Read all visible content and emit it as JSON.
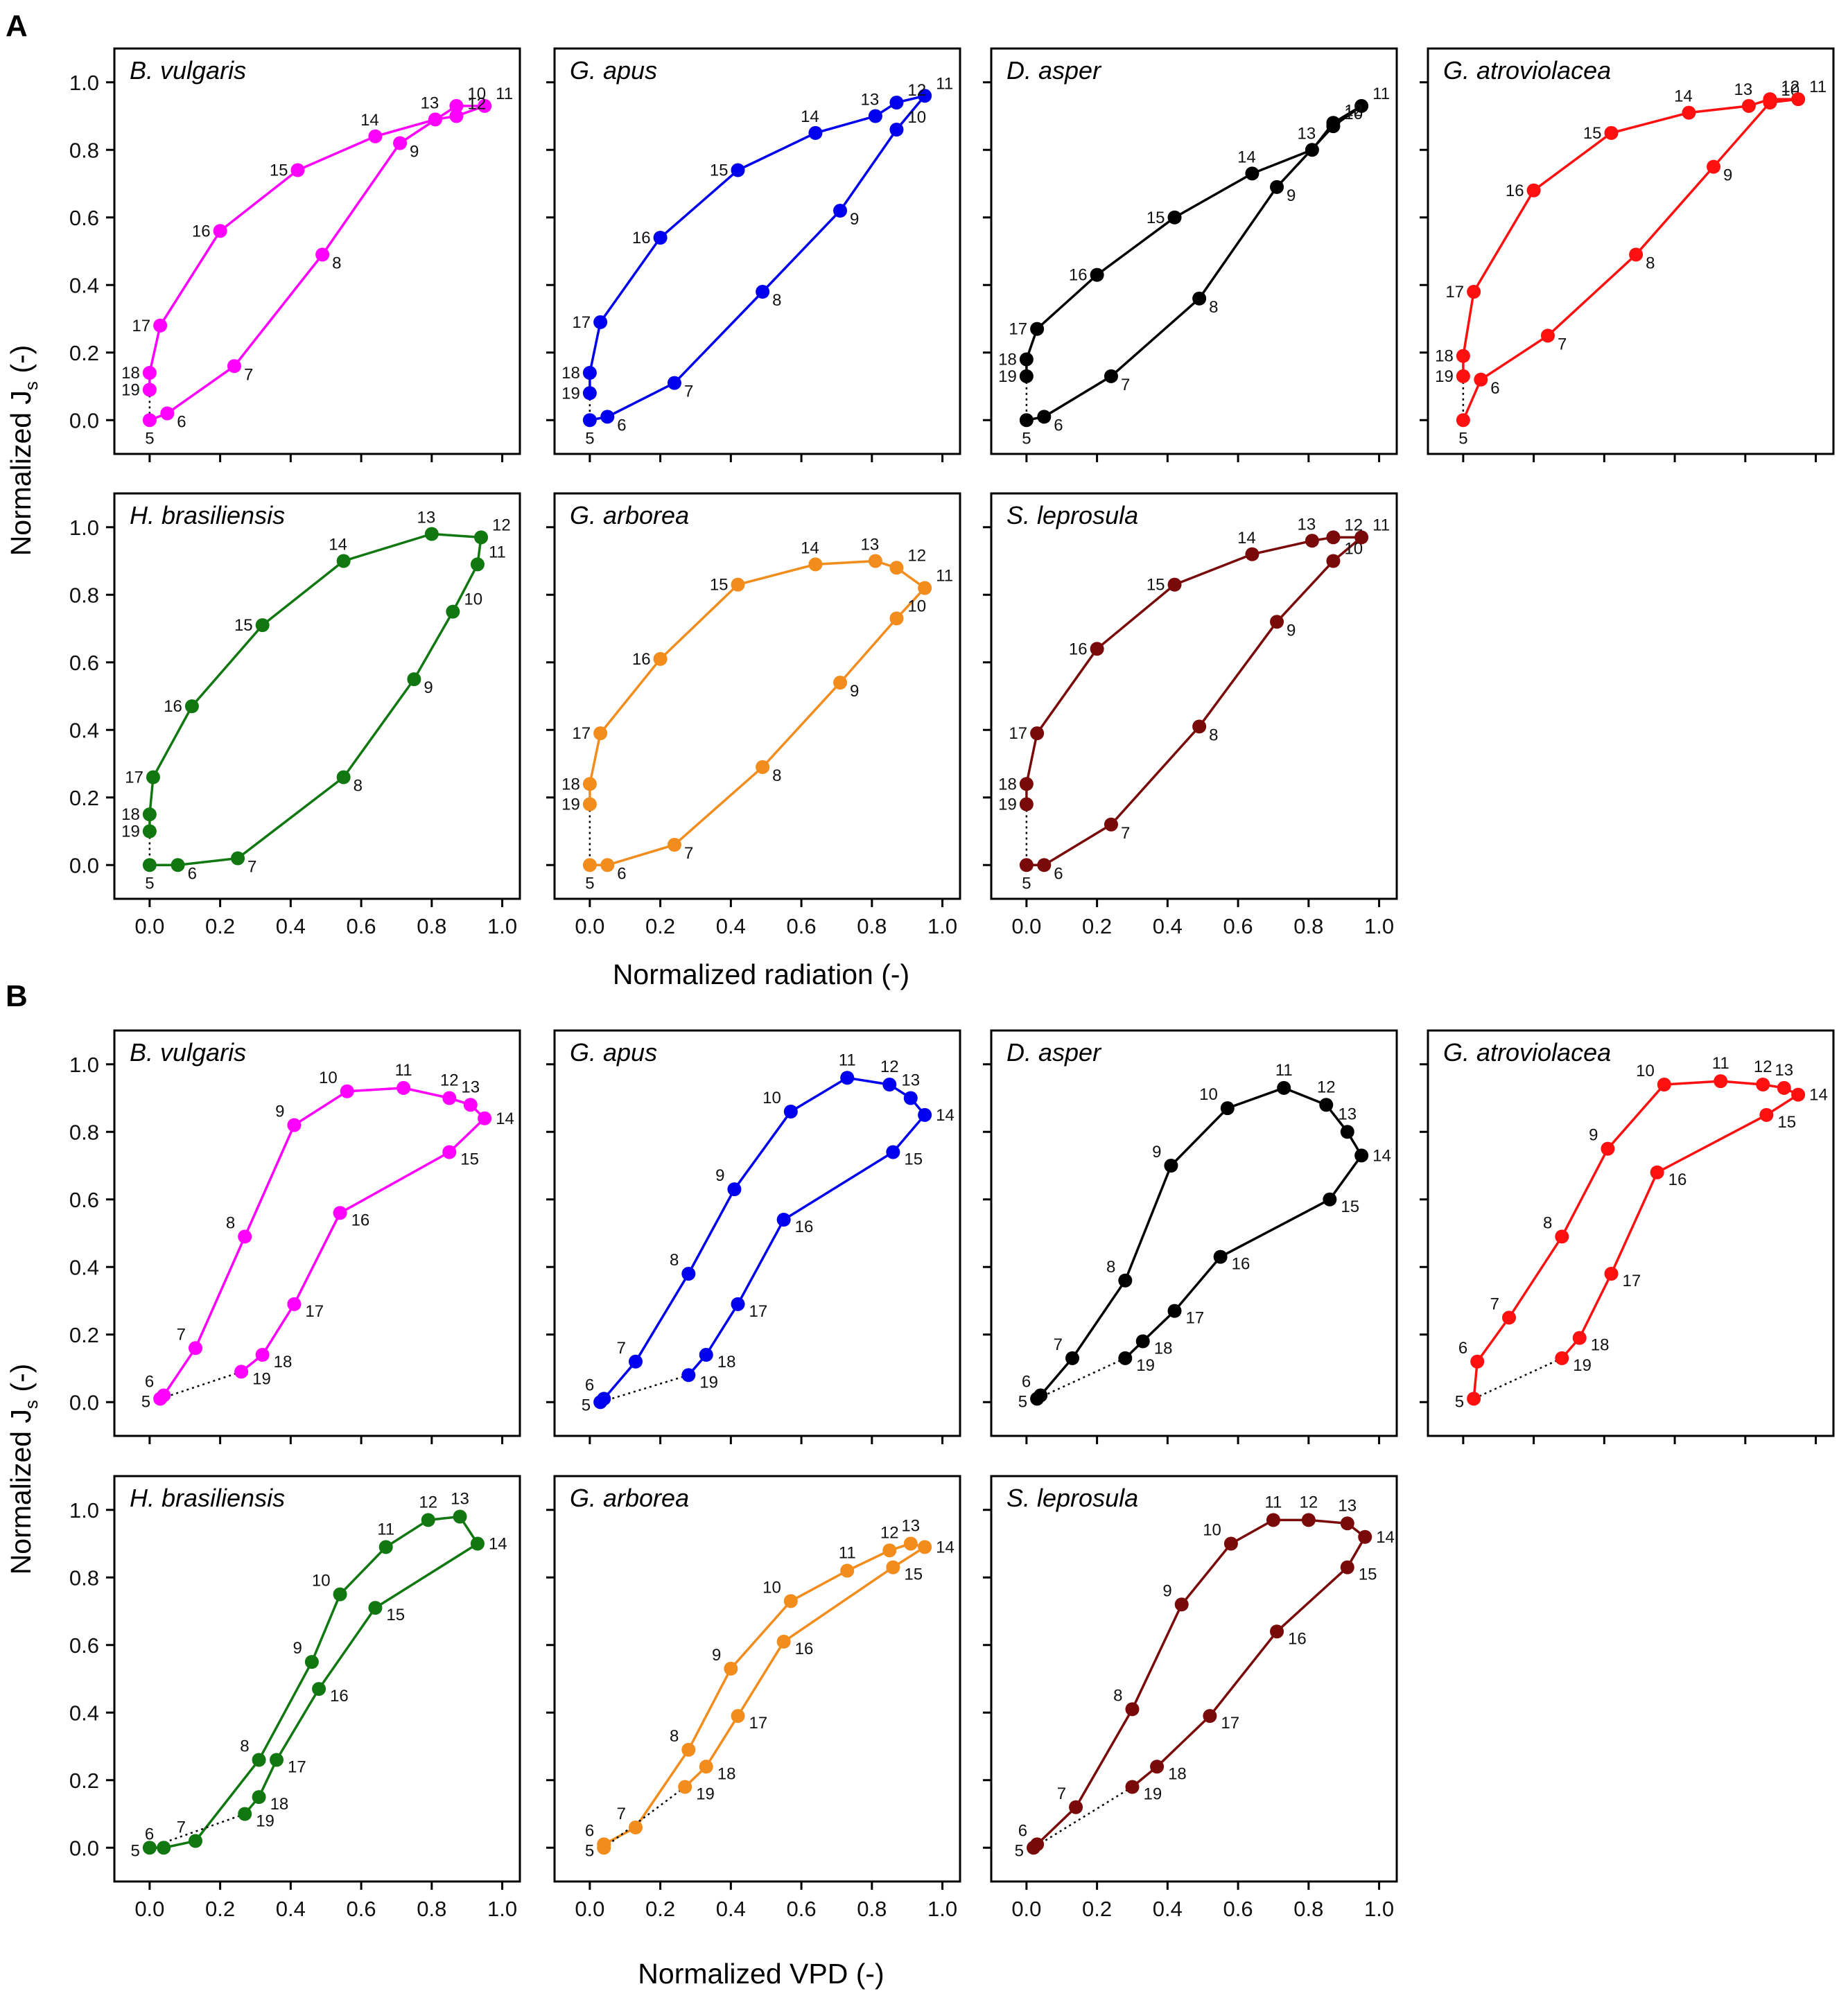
{
  "sections": [
    {
      "id": "A",
      "label": "A",
      "x_axis_label": "Normalized radiation (-)",
      "y_axis_label_main": "Normalized J",
      "y_axis_label_sub": "s",
      "y_axis_label_tail": " (-)",
      "x_tick_labels": [
        "0.0",
        "0.2",
        "0.4",
        "0.6",
        "0.8",
        "1.0"
      ],
      "y_tick_labels": [
        "0.0",
        "0.2",
        "0.4",
        "0.6",
        "0.8",
        "1.0"
      ]
    },
    {
      "id": "B",
      "label": "B",
      "x_axis_label": "Normalized VPD (-)",
      "y_axis_label_main": "Normalized J",
      "y_axis_label_sub": "s",
      "y_axis_label_tail": " (-)",
      "x_tick_labels": [
        "0.0",
        "0.2",
        "0.4",
        "0.6",
        "0.8",
        "1.0"
      ],
      "y_tick_labels": [
        "0.0",
        "0.2",
        "0.4",
        "0.6",
        "0.8",
        "1.0"
      ]
    }
  ],
  "chart_data": [
    {
      "type": "line",
      "section": "A",
      "title": "B. vulgaris",
      "color": "#ff00ff",
      "xlabel": "Normalized radiation (-)",
      "ylabel": "Normalized Js (-)",
      "xlim": [
        -0.1,
        1.05
      ],
      "ylim": [
        -0.1,
        1.1
      ],
      "hours": [
        5,
        6,
        7,
        8,
        9,
        10,
        11,
        12,
        13,
        14,
        15,
        16,
        17,
        18,
        19
      ],
      "x": [
        0.0,
        0.05,
        0.24,
        0.49,
        0.71,
        0.87,
        0.95,
        0.87,
        0.81,
        0.64,
        0.42,
        0.2,
        0.03,
        0.0,
        0.0
      ],
      "y": [
        0.0,
        0.02,
        0.16,
        0.49,
        0.82,
        0.93,
        0.93,
        0.9,
        0.89,
        0.84,
        0.74,
        0.56,
        0.28,
        0.14,
        0.09
      ]
    },
    {
      "type": "line",
      "section": "A",
      "title": "G. apus",
      "color": "#0000ee",
      "xlabel": "Normalized radiation (-)",
      "ylabel": "Normalized Js (-)",
      "xlim": [
        -0.1,
        1.05
      ],
      "ylim": [
        -0.1,
        1.1
      ],
      "hours": [
        5,
        6,
        7,
        8,
        9,
        10,
        11,
        12,
        13,
        14,
        15,
        16,
        17,
        18,
        19
      ],
      "x": [
        0.0,
        0.05,
        0.24,
        0.49,
        0.71,
        0.87,
        0.95,
        0.87,
        0.81,
        0.64,
        0.42,
        0.2,
        0.03,
        0.0,
        0.0
      ],
      "y": [
        0.0,
        0.01,
        0.11,
        0.38,
        0.62,
        0.86,
        0.96,
        0.94,
        0.9,
        0.85,
        0.74,
        0.54,
        0.29,
        0.14,
        0.08
      ]
    },
    {
      "type": "line",
      "section": "A",
      "title": "D. asper",
      "color": "#000000",
      "xlabel": "Normalized radiation (-)",
      "ylabel": "Normalized Js (-)",
      "xlim": [
        -0.1,
        1.05
      ],
      "ylim": [
        -0.1,
        1.1
      ],
      "hours": [
        5,
        6,
        7,
        8,
        9,
        10,
        11,
        12,
        13,
        14,
        15,
        16,
        17,
        18,
        19
      ],
      "x": [
        0.0,
        0.05,
        0.24,
        0.49,
        0.71,
        0.87,
        0.95,
        0.87,
        0.81,
        0.64,
        0.42,
        0.2,
        0.03,
        0.0,
        0.0
      ],
      "y": [
        0.0,
        0.01,
        0.13,
        0.36,
        0.69,
        0.87,
        0.93,
        0.88,
        0.8,
        0.73,
        0.6,
        0.43,
        0.27,
        0.18,
        0.13
      ]
    },
    {
      "type": "line",
      "section": "A",
      "title": "G. atroviolacea",
      "color": "#ff1010",
      "xlabel": "Normalized radiation (-)",
      "ylabel": "Normalized Js (-)",
      "xlim": [
        -0.1,
        1.05
      ],
      "ylim": [
        -0.1,
        1.1
      ],
      "hours": [
        5,
        6,
        7,
        8,
        9,
        10,
        11,
        12,
        13,
        14,
        15,
        16,
        17,
        18,
        19
      ],
      "x": [
        0.0,
        0.05,
        0.24,
        0.49,
        0.71,
        0.87,
        0.95,
        0.87,
        0.81,
        0.64,
        0.42,
        0.2,
        0.03,
        0.0,
        0.0
      ],
      "y": [
        0.0,
        0.12,
        0.25,
        0.49,
        0.75,
        0.94,
        0.95,
        0.95,
        0.93,
        0.91,
        0.85,
        0.68,
        0.38,
        0.19,
        0.13
      ]
    },
    {
      "type": "line",
      "section": "A",
      "title": "H. brasiliensis",
      "color": "#117711",
      "xlabel": "Normalized radiation (-)",
      "ylabel": "Normalized Js (-)",
      "xlim": [
        -0.1,
        1.05
      ],
      "ylim": [
        -0.1,
        1.1
      ],
      "hours": [
        5,
        6,
        7,
        8,
        9,
        10,
        11,
        12,
        13,
        14,
        15,
        16,
        17,
        18,
        19
      ],
      "x": [
        0.0,
        0.08,
        0.25,
        0.55,
        0.75,
        0.86,
        0.93,
        0.94,
        0.8,
        0.55,
        0.32,
        0.12,
        0.01,
        0.0,
        0.0
      ],
      "y": [
        0.0,
        0.0,
        0.02,
        0.26,
        0.55,
        0.75,
        0.89,
        0.97,
        0.98,
        0.9,
        0.71,
        0.47,
        0.26,
        0.15,
        0.1
      ]
    },
    {
      "type": "line",
      "section": "A",
      "title": "G. arborea",
      "color": "#f28c1c",
      "xlabel": "Normalized radiation (-)",
      "ylabel": "Normalized Js (-)",
      "xlim": [
        -0.1,
        1.05
      ],
      "ylim": [
        -0.1,
        1.1
      ],
      "hours": [
        5,
        6,
        7,
        8,
        9,
        10,
        11,
        12,
        13,
        14,
        15,
        16,
        17,
        18,
        19
      ],
      "x": [
        0.0,
        0.05,
        0.24,
        0.49,
        0.71,
        0.87,
        0.95,
        0.87,
        0.81,
        0.64,
        0.42,
        0.2,
        0.03,
        0.0,
        0.0
      ],
      "y": [
        0.0,
        0.0,
        0.06,
        0.29,
        0.54,
        0.73,
        0.82,
        0.88,
        0.9,
        0.89,
        0.83,
        0.61,
        0.39,
        0.24,
        0.18
      ]
    },
    {
      "type": "line",
      "section": "A",
      "title": "S. leprosula",
      "color": "#7a0a0a",
      "xlabel": "Normalized radiation (-)",
      "ylabel": "Normalized Js (-)",
      "xlim": [
        -0.1,
        1.05
      ],
      "ylim": [
        -0.1,
        1.1
      ],
      "hours": [
        5,
        6,
        7,
        8,
        9,
        10,
        11,
        12,
        13,
        14,
        15,
        16,
        17,
        18,
        19
      ],
      "x": [
        0.0,
        0.05,
        0.24,
        0.49,
        0.71,
        0.87,
        0.95,
        0.87,
        0.81,
        0.64,
        0.42,
        0.2,
        0.03,
        0.0,
        0.0
      ],
      "y": [
        0.0,
        0.0,
        0.12,
        0.41,
        0.72,
        0.9,
        0.97,
        0.97,
        0.96,
        0.92,
        0.83,
        0.64,
        0.39,
        0.24,
        0.18
      ]
    },
    {
      "type": "line",
      "section": "B",
      "title": "B. vulgaris",
      "color": "#ff00ff",
      "xlabel": "Normalized VPD (-)",
      "ylabel": "Normalized Js (-)",
      "xlim": [
        -0.1,
        1.05
      ],
      "ylim": [
        -0.1,
        1.1
      ],
      "hours": [
        5,
        6,
        7,
        8,
        9,
        10,
        11,
        12,
        13,
        14,
        15,
        16,
        17,
        18,
        19
      ],
      "x": [
        0.03,
        0.04,
        0.13,
        0.27,
        0.41,
        0.56,
        0.72,
        0.85,
        0.91,
        0.95,
        0.85,
        0.54,
        0.41,
        0.32,
        0.26
      ],
      "y": [
        0.01,
        0.02,
        0.16,
        0.49,
        0.82,
        0.92,
        0.93,
        0.9,
        0.88,
        0.84,
        0.74,
        0.56,
        0.29,
        0.14,
        0.09
      ]
    },
    {
      "type": "line",
      "section": "B",
      "title": "G. apus",
      "color": "#0000ee",
      "xlabel": "Normalized VPD (-)",
      "ylabel": "Normalized Js (-)",
      "xlim": [
        -0.1,
        1.05
      ],
      "ylim": [
        -0.1,
        1.1
      ],
      "hours": [
        5,
        6,
        7,
        8,
        9,
        10,
        11,
        12,
        13,
        14,
        15,
        16,
        17,
        18,
        19
      ],
      "x": [
        0.03,
        0.04,
        0.13,
        0.28,
        0.41,
        0.57,
        0.73,
        0.85,
        0.91,
        0.95,
        0.86,
        0.55,
        0.42,
        0.33,
        0.28
      ],
      "y": [
        0.0,
        0.01,
        0.12,
        0.38,
        0.63,
        0.86,
        0.96,
        0.94,
        0.9,
        0.85,
        0.74,
        0.54,
        0.29,
        0.14,
        0.08
      ]
    },
    {
      "type": "line",
      "section": "B",
      "title": "D. asper",
      "color": "#000000",
      "xlabel": "Normalized VPD (-)",
      "ylabel": "Normalized Js (-)",
      "xlim": [
        -0.1,
        1.05
      ],
      "ylim": [
        -0.1,
        1.1
      ],
      "hours": [
        5,
        6,
        7,
        8,
        9,
        10,
        11,
        12,
        13,
        14,
        15,
        16,
        17,
        18,
        19
      ],
      "x": [
        0.03,
        0.04,
        0.13,
        0.28,
        0.41,
        0.57,
        0.73,
        0.85,
        0.91,
        0.95,
        0.86,
        0.55,
        0.42,
        0.33,
        0.28
      ],
      "y": [
        0.01,
        0.02,
        0.13,
        0.36,
        0.7,
        0.87,
        0.93,
        0.88,
        0.8,
        0.73,
        0.6,
        0.43,
        0.27,
        0.18,
        0.13
      ]
    },
    {
      "type": "line",
      "section": "B",
      "title": "G. atroviolacea",
      "color": "#ff1010",
      "xlabel": "Normalized VPD (-)",
      "ylabel": "Normalized Js (-)",
      "xlim": [
        -0.1,
        1.05
      ],
      "ylim": [
        -0.1,
        1.1
      ],
      "hours": [
        5,
        6,
        7,
        8,
        9,
        10,
        11,
        12,
        13,
        14,
        15,
        16,
        17,
        18,
        19
      ],
      "x": [
        0.03,
        0.04,
        0.13,
        0.28,
        0.41,
        0.57,
        0.73,
        0.85,
        0.91,
        0.95,
        0.86,
        0.55,
        0.42,
        0.33,
        0.28
      ],
      "y": [
        0.01,
        0.12,
        0.25,
        0.49,
        0.75,
        0.94,
        0.95,
        0.94,
        0.93,
        0.91,
        0.85,
        0.68,
        0.38,
        0.19,
        0.13
      ]
    },
    {
      "type": "line",
      "section": "B",
      "title": "H. brasiliensis",
      "color": "#117711",
      "xlabel": "Normalized VPD (-)",
      "ylabel": "Normalized Js (-)",
      "xlim": [
        -0.1,
        1.05
      ],
      "ylim": [
        -0.1,
        1.1
      ],
      "hours": [
        5,
        6,
        7,
        8,
        9,
        10,
        11,
        12,
        13,
        14,
        15,
        16,
        17,
        18,
        19
      ],
      "x": [
        0.0,
        0.04,
        0.13,
        0.31,
        0.46,
        0.54,
        0.67,
        0.79,
        0.88,
        0.93,
        0.64,
        0.48,
        0.36,
        0.31,
        0.27
      ],
      "y": [
        0.0,
        0.0,
        0.02,
        0.26,
        0.55,
        0.75,
        0.89,
        0.97,
        0.98,
        0.9,
        0.71,
        0.47,
        0.26,
        0.15,
        0.1
      ]
    },
    {
      "type": "line",
      "section": "B",
      "title": "G. arborea",
      "color": "#f28c1c",
      "xlabel": "Normalized VPD (-)",
      "ylabel": "Normalized Js (-)",
      "xlim": [
        -0.1,
        1.05
      ],
      "ylim": [
        -0.1,
        1.1
      ],
      "hours": [
        5,
        6,
        7,
        8,
        9,
        10,
        11,
        12,
        13,
        14,
        15,
        16,
        17,
        18,
        19
      ],
      "x": [
        0.04,
        0.04,
        0.13,
        0.28,
        0.4,
        0.57,
        0.73,
        0.85,
        0.91,
        0.95,
        0.86,
        0.55,
        0.42,
        0.33,
        0.27
      ],
      "y": [
        0.0,
        0.01,
        0.06,
        0.29,
        0.53,
        0.73,
        0.82,
        0.88,
        0.9,
        0.89,
        0.83,
        0.61,
        0.39,
        0.24,
        0.18
      ]
    },
    {
      "type": "line",
      "section": "B",
      "title": "S. leprosula",
      "color": "#7a0a0a",
      "xlabel": "Normalized VPD (-)",
      "ylabel": "Normalized Js (-)",
      "xlim": [
        -0.1,
        1.05
      ],
      "ylim": [
        -0.1,
        1.1
      ],
      "hours": [
        5,
        6,
        7,
        8,
        9,
        10,
        11,
        12,
        13,
        14,
        15,
        16,
        17,
        18,
        19
      ],
      "x": [
        0.02,
        0.03,
        0.14,
        0.3,
        0.44,
        0.58,
        0.7,
        0.8,
        0.91,
        0.96,
        0.91,
        0.71,
        0.52,
        0.37,
        0.3
      ],
      "y": [
        0.0,
        0.01,
        0.12,
        0.41,
        0.72,
        0.9,
        0.97,
        0.97,
        0.96,
        0.92,
        0.83,
        0.64,
        0.39,
        0.24,
        0.18
      ]
    }
  ]
}
